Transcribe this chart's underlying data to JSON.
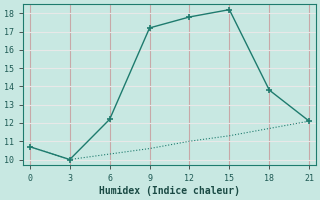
{
  "line1_x": [
    0,
    3,
    6,
    9,
    12,
    15,
    18,
    21
  ],
  "line1_y": [
    10.7,
    10.0,
    12.2,
    17.2,
    17.8,
    18.2,
    13.8,
    12.1
  ],
  "line2_x": [
    0,
    3,
    6,
    9,
    12,
    15,
    18,
    21
  ],
  "line2_y": [
    10.7,
    10.0,
    10.3,
    10.6,
    11.0,
    11.3,
    11.7,
    12.1
  ],
  "line_color": "#1e7b6e",
  "bg_color": "#c8e8e2",
  "grid_color_v": "#c8a8a8",
  "grid_color_h": "#e8e8e8",
  "xlabel": "Humidex (Indice chaleur)",
  "xlim": [
    -0.5,
    21.5
  ],
  "ylim": [
    9.7,
    18.5
  ],
  "xticks": [
    0,
    3,
    6,
    9,
    12,
    15,
    18,
    21
  ],
  "yticks": [
    10,
    11,
    12,
    13,
    14,
    15,
    16,
    17,
    18
  ],
  "marker": "+",
  "marker_size": 5,
  "linewidth": 1.0,
  "linewidth2": 0.8
}
